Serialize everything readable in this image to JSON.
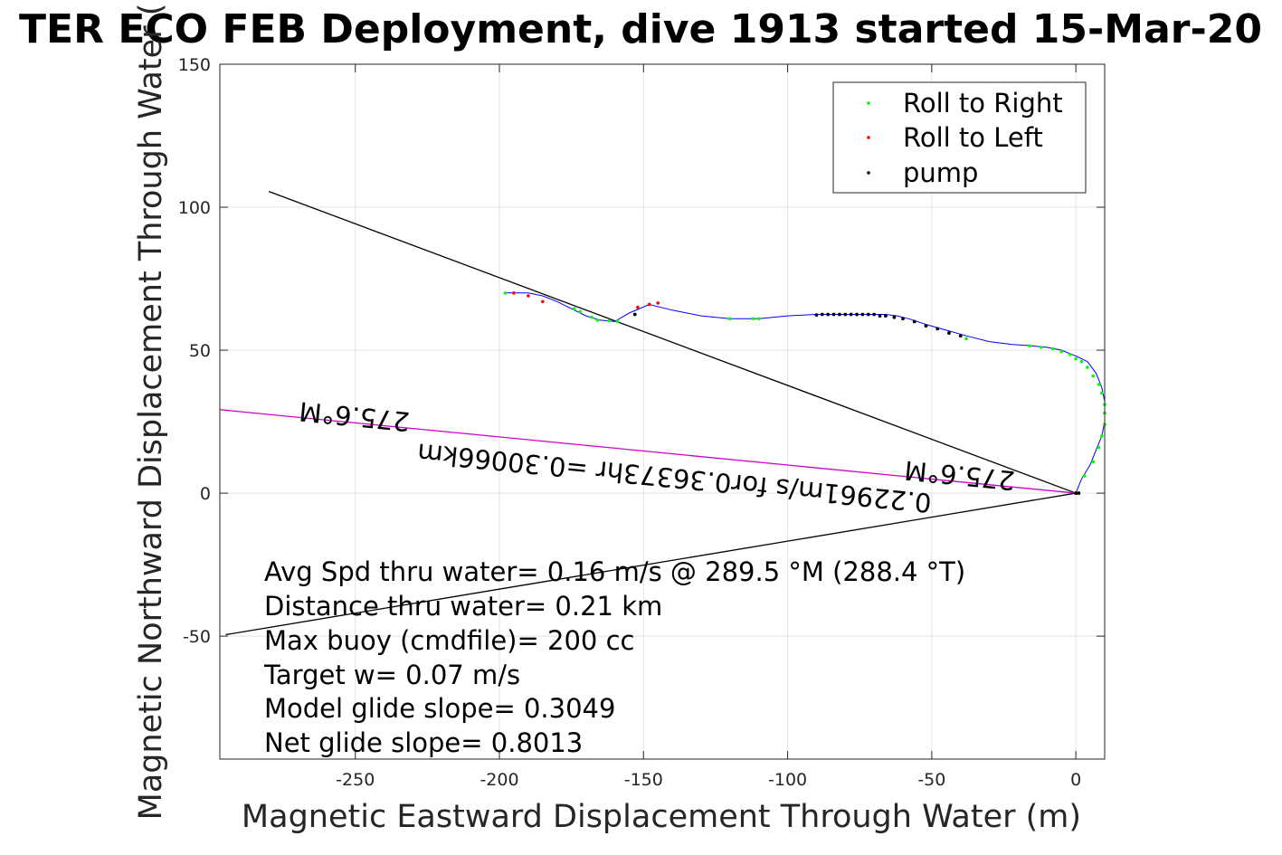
{
  "chart_data": {
    "type": "line",
    "title": "TER ECO FEB Deployment, dive 1913 started 15-Mar-20",
    "xlabel": "Magnetic Eastward Displacement Through Water (m)",
    "ylabel": "Magnetic Northward Displacement Through Water (",
    "xlim": [
      -297,
      10
    ],
    "ylim": [
      -93,
      150
    ],
    "grid": true,
    "x_ticks": [
      -250,
      -200,
      -150,
      -100,
      -50,
      0
    ],
    "y_ticks": [
      -50,
      0,
      50,
      100,
      150
    ],
    "legend": {
      "position": "top-right",
      "entries": [
        {
          "label": "Roll to Right",
          "color": "#00ff00"
        },
        {
          "label": "Roll to Left",
          "color": "#ff0000"
        },
        {
          "label": "pump",
          "color": "#000000"
        }
      ]
    },
    "track": {
      "name": "glider track",
      "color": "#0000ff",
      "x": [
        0,
        2,
        5,
        7,
        9,
        10,
        10,
        9,
        7,
        4,
        0,
        -5,
        -10,
        -15,
        -22,
        -30,
        -38,
        -45,
        -52,
        -58,
        -62,
        -66,
        -70,
        -75,
        -80,
        -85,
        -90,
        -100,
        -110,
        -115,
        -120,
        -130,
        -140,
        -148,
        -155,
        -160,
        -165,
        -170,
        -175,
        -180,
        -185,
        -190,
        -194,
        -198
      ],
      "y": [
        0,
        5,
        10,
        15,
        20,
        25,
        32,
        37,
        42,
        46,
        48,
        50,
        51,
        51.5,
        52,
        53,
        55,
        57,
        59,
        61,
        62,
        62.5,
        62.5,
        62.5,
        62.5,
        62.5,
        62.5,
        62,
        61,
        61,
        61,
        62,
        64,
        66,
        63,
        60,
        60.5,
        62,
        64.5,
        67,
        69,
        70,
        70,
        70
      ]
    },
    "roll_right_points": {
      "x": [
        0,
        3,
        6,
        8,
        9,
        10,
        10,
        10,
        9,
        8,
        6,
        4,
        2,
        0,
        -2,
        -5,
        -8,
        -12,
        -16,
        -38,
        -110,
        -112,
        -120,
        -159,
        -162,
        -166,
        -168,
        -172,
        -174,
        -198
      ],
      "y": [
        0,
        6,
        11,
        16,
        20,
        24,
        28,
        31,
        35,
        38,
        41,
        44,
        46,
        47,
        48.5,
        49.5,
        50.5,
        51,
        51.5,
        54,
        61,
        61,
        61,
        60,
        60.3,
        60.5,
        61.5,
        63.5,
        64.5,
        70
      ]
    },
    "roll_left_points": {
      "x": [
        0,
        -145,
        -148,
        -152,
        -185,
        -190,
        -195
      ],
      "y": [
        0,
        66.5,
        66,
        65,
        67,
        69,
        70
      ]
    },
    "pump_points": {
      "x": [
        0,
        1,
        -40,
        -44,
        -48,
        -52,
        -56,
        -60,
        -63,
        -66,
        -68,
        -70,
        -72,
        -74,
        -76,
        -78,
        -80,
        -82,
        -84,
        -86,
        -88,
        -90,
        -153
      ],
      "y": [
        0,
        0,
        55,
        56,
        57.5,
        58.5,
        60,
        61,
        61.5,
        62,
        62,
        62.5,
        62.5,
        62.5,
        62.5,
        62.5,
        62.5,
        62.5,
        62.5,
        62.5,
        62.5,
        62.3,
        62.5
      ]
    },
    "reference_lines": [
      {
        "name": "upper heading bound",
        "color": "#000000",
        "x": [
          0,
          -280
        ],
        "y": [
          0,
          105.5
        ]
      },
      {
        "name": "lower heading bound",
        "color": "#000000",
        "x": [
          0,
          -295
        ],
        "y": [
          0,
          -49.5
        ]
      },
      {
        "name": "current vector",
        "color": "#cc00cc",
        "x": [
          0,
          -297
        ],
        "y": [
          0,
          29.2
        ]
      }
    ],
    "rotated_labels": [
      {
        "text": "275.6°M",
        "x": -250,
        "y": 30,
        "angle": 185.6
      },
      {
        "text": "0.22961m/s for0.36373hr =0.30066km",
        "x": -139,
        "y": 8.5,
        "angle": 185.6
      },
      {
        "text": "275.6°M",
        "x": -40,
        "y": 9.4,
        "angle": 185.6
      }
    ],
    "annotations": [
      "Avg Spd thru water=  0.16 m/s @ 289.5 °M (288.4 °T)",
      "Distance thru water=  0.21 km",
      "Max buoy (cmdfile)= 200 cc",
      "Target w= 0.07 m/s",
      "Model glide slope= 0.3049",
      "Net glide slope= 0.8013"
    ]
  }
}
